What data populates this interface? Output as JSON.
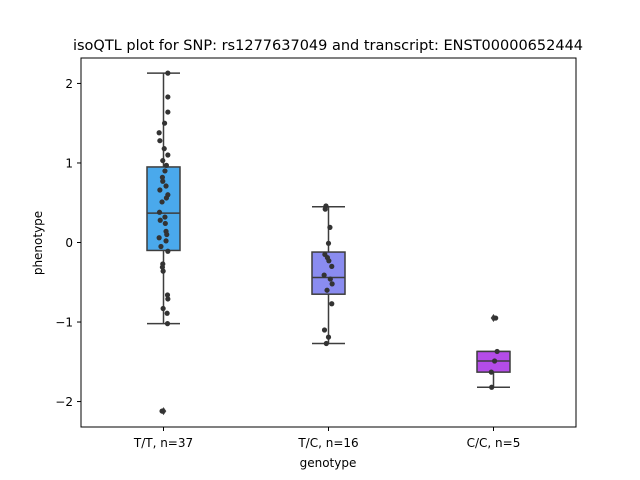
{
  "chart_data": {
    "type": "box",
    "title": "isoQTL plot for SNP: rs1277637049 and transcript: ENST00000652444",
    "xlabel": "genotype",
    "ylabel": "phenotype",
    "ylim": [
      -2.32,
      2.32
    ],
    "yticks": [
      -2,
      -1,
      0,
      1,
      2
    ],
    "yticklabels": [
      "−2",
      "−1",
      "0",
      "1",
      "2"
    ],
    "categories": [
      "T/T, n=37",
      "T/C, n=16",
      "C/C, n=5"
    ],
    "colors": [
      "#4aa9ec",
      "#8a8cf0",
      "#b44ce8"
    ],
    "boxes": [
      {
        "q1": -0.1,
        "median": 0.37,
        "q3": 0.95,
        "whisker_low": -1.02,
        "whisker_high": 2.13,
        "fliers": [
          -2.12
        ]
      },
      {
        "q1": -0.65,
        "median": -0.44,
        "q3": -0.12,
        "whisker_low": -1.27,
        "whisker_high": 0.45,
        "fliers": []
      },
      {
        "q1": -1.63,
        "median": -1.49,
        "q3": -1.37,
        "whisker_low": -1.82,
        "whisker_high": -1.37,
        "fliers": [
          -0.95
        ]
      }
    ],
    "points": [
      [
        {
          "dx": 0.12,
          "y": 2.13
        },
        {
          "dx": 0.12,
          "y": 1.83
        },
        {
          "dx": 0.12,
          "y": 1.64
        },
        {
          "dx": 0.03,
          "y": 1.5
        },
        {
          "dx": -0.12,
          "y": 1.38
        },
        {
          "dx": -0.1,
          "y": 1.28
        },
        {
          "dx": 0.02,
          "y": 1.18
        },
        {
          "dx": 0.12,
          "y": 1.1
        },
        {
          "dx": -0.02,
          "y": 1.03
        },
        {
          "dx": 0.08,
          "y": 0.97
        },
        {
          "dx": 0.04,
          "y": 0.9
        },
        {
          "dx": -0.03,
          "y": 0.82
        },
        {
          "dx": -0.02,
          "y": 0.77
        },
        {
          "dx": 0.07,
          "y": 0.71
        },
        {
          "dx": -0.1,
          "y": 0.66
        },
        {
          "dx": 0.12,
          "y": 0.6
        },
        {
          "dx": 0.08,
          "y": 0.56
        },
        {
          "dx": -0.04,
          "y": 0.51
        },
        {
          "dx": -0.11,
          "y": 0.38
        },
        {
          "dx": 0.04,
          "y": 0.32
        },
        {
          "dx": -0.09,
          "y": 0.28
        },
        {
          "dx": 0.05,
          "y": 0.24
        },
        {
          "dx": 0.07,
          "y": 0.14
        },
        {
          "dx": 0.09,
          "y": 0.1
        },
        {
          "dx": -0.12,
          "y": 0.06
        },
        {
          "dx": 0.07,
          "y": 0.02
        },
        {
          "dx": -0.07,
          "y": -0.05
        },
        {
          "dx": 0.12,
          "y": -0.11
        },
        {
          "dx": -0.02,
          "y": -0.27
        },
        {
          "dx": -0.03,
          "y": -0.31
        },
        {
          "dx": -0.01,
          "y": -0.36
        },
        {
          "dx": 0.11,
          "y": -0.66
        },
        {
          "dx": 0.12,
          "y": -0.71
        },
        {
          "dx": -0.01,
          "y": -0.83
        },
        {
          "dx": 0.1,
          "y": -0.89
        },
        {
          "dx": 0.11,
          "y": -1.02
        },
        {
          "dx": -0.04,
          "y": -2.12
        }
      ],
      [
        {
          "dx": -0.07,
          "y": 0.46
        },
        {
          "dx": -0.09,
          "y": 0.42
        },
        {
          "dx": 0.04,
          "y": 0.19
        },
        {
          "dx": 0.0,
          "y": -0.01
        },
        {
          "dx": -0.1,
          "y": -0.15
        },
        {
          "dx": -0.03,
          "y": -0.19
        },
        {
          "dx": 0.01,
          "y": -0.23
        },
        {
          "dx": 0.09,
          "y": -0.3
        },
        {
          "dx": -0.12,
          "y": -0.41
        },
        {
          "dx": 0.05,
          "y": -0.46
        },
        {
          "dx": 0.1,
          "y": -0.52
        },
        {
          "dx": -0.04,
          "y": -0.6
        },
        {
          "dx": 0.09,
          "y": -0.77
        },
        {
          "dx": -0.11,
          "y": -1.1
        },
        {
          "dx": 0.0,
          "y": -1.19
        },
        {
          "dx": -0.06,
          "y": -1.27
        }
      ],
      [
        {
          "dx": 0.06,
          "y": -0.95
        },
        {
          "dx": 0.1,
          "y": -1.37
        },
        {
          "dx": 0.03,
          "y": -1.49
        },
        {
          "dx": -0.06,
          "y": -1.63
        },
        {
          "dx": -0.05,
          "y": -1.82
        }
      ]
    ]
  }
}
